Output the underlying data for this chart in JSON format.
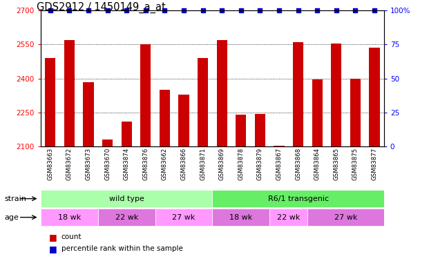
{
  "title": "GDS2912 / 1450149_a_at",
  "samples": [
    "GSM83663",
    "GSM83672",
    "GSM83673",
    "GSM83670",
    "GSM83874",
    "GSM83876",
    "GSM83662",
    "GSM83866",
    "GSM83871",
    "GSM83869",
    "GSM83878",
    "GSM83879",
    "GSM83867",
    "GSM83868",
    "GSM83864",
    "GSM83865",
    "GSM83875",
    "GSM83877"
  ],
  "values": [
    2490,
    2570,
    2385,
    2130,
    2210,
    2550,
    2350,
    2330,
    2490,
    2570,
    2240,
    2245,
    2105,
    2560,
    2395,
    2555,
    2400,
    2535
  ],
  "bar_color": "#cc0000",
  "dot_color": "#0000cc",
  "ylim_left": [
    2100,
    2700
  ],
  "ylim_right": [
    0,
    100
  ],
  "yticks_left": [
    2100,
    2250,
    2400,
    2550,
    2700
  ],
  "yticks_right": [
    0,
    25,
    50,
    75,
    100
  ],
  "ytick_labels_right": [
    "0",
    "25",
    "50",
    "75",
    "100%"
  ],
  "strain_groups": [
    {
      "label": "wild type",
      "start": 0,
      "end": 8,
      "color": "#aaffaa"
    },
    {
      "label": "R6/1 transgenic",
      "start": 9,
      "end": 17,
      "color": "#66ee66"
    }
  ],
  "age_groups": [
    {
      "label": "18 wk",
      "start": 0,
      "end": 2,
      "color": "#ff99ff"
    },
    {
      "label": "22 wk",
      "start": 3,
      "end": 5,
      "color": "#dd77dd"
    },
    {
      "label": "27 wk",
      "start": 6,
      "end": 8,
      "color": "#ff99ff"
    },
    {
      "label": "18 wk",
      "start": 9,
      "end": 11,
      "color": "#dd77dd"
    },
    {
      "label": "22 wk",
      "start": 12,
      "end": 13,
      "color": "#ff99ff"
    },
    {
      "label": "27 wk",
      "start": 14,
      "end": 17,
      "color": "#dd77dd"
    }
  ],
  "legend_items": [
    {
      "label": "count",
      "color": "#cc0000"
    },
    {
      "label": "percentile rank within the sample",
      "color": "#0000cc"
    }
  ],
  "gray_color": "#bbbbbb",
  "background_color": "#ffffff"
}
